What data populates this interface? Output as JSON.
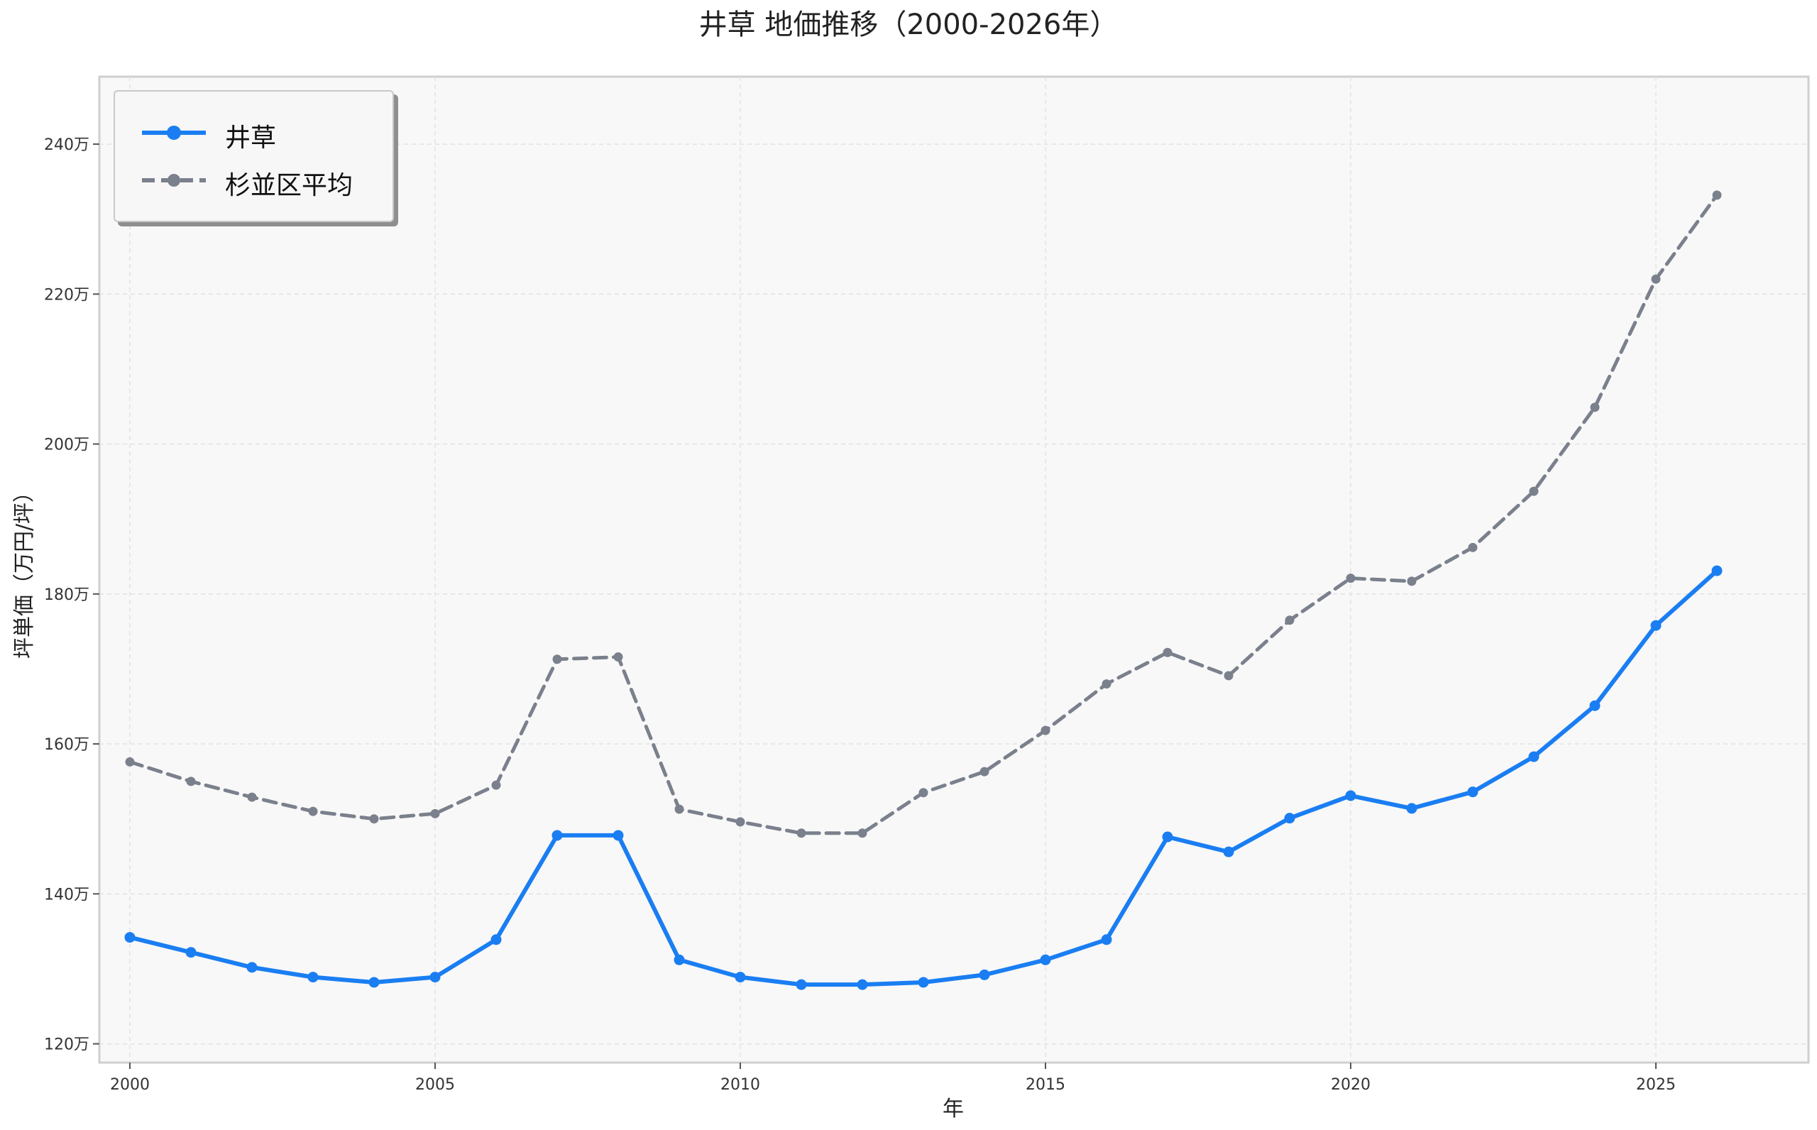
{
  "chart_data": {
    "type": "line",
    "title": "井草 地価推移（2000-2026年）",
    "xlabel": "年",
    "ylabel": "坪単価（万円/坪）",
    "x": [
      2000,
      2001,
      2002,
      2003,
      2004,
      2005,
      2006,
      2007,
      2008,
      2009,
      2010,
      2011,
      2012,
      2013,
      2014,
      2015,
      2016,
      2017,
      2018,
      2019,
      2020,
      2021,
      2022,
      2023,
      2024,
      2025,
      2026
    ],
    "x_ticks": [
      2000,
      2005,
      2010,
      2015,
      2020,
      2025
    ],
    "y_ticks": [
      120,
      140,
      160,
      180,
      200,
      220,
      240
    ],
    "y_tick_suffix": "万",
    "xlim": [
      1999.5,
      2027.5
    ],
    "ylim": [
      117.5,
      249
    ],
    "grid": true,
    "legend_position": "top-left",
    "series": [
      {
        "name": "井草",
        "color": "#1a7ef2",
        "style": "solid",
        "marker": "circle",
        "values": [
          134.2,
          132.2,
          130.2,
          128.9,
          128.2,
          128.9,
          133.9,
          147.8,
          147.8,
          131.2,
          128.9,
          127.9,
          127.9,
          128.2,
          129.2,
          131.2,
          133.9,
          147.6,
          145.6,
          150.1,
          153.1,
          151.4,
          153.6,
          158.3,
          165.1,
          175.8,
          183.1
        ]
      },
      {
        "name": "杉並区平均",
        "color": "#7a808c",
        "style": "dashed",
        "marker": "circle",
        "values": [
          157.6,
          155.0,
          152.9,
          151.0,
          150.0,
          150.7,
          154.5,
          171.3,
          171.6,
          151.3,
          149.6,
          148.1,
          148.1,
          153.5,
          156.3,
          161.8,
          168.0,
          172.2,
          169.1,
          176.5,
          182.1,
          181.7,
          186.2,
          193.7,
          204.9,
          222.0,
          233.2
        ]
      }
    ],
    "colors": {
      "plot_background": "#f8f8f8",
      "axes_border": "#cfcfcf",
      "grid": "#e2e2e2",
      "text": "#222222"
    }
  }
}
